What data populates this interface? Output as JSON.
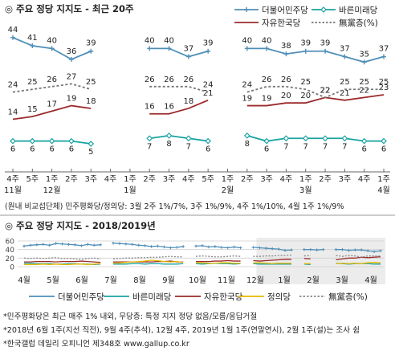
{
  "chart_data": [
    {
      "type": "line",
      "title": "◎ 주요 정당 지지도 - 최근 20주",
      "x_top": [
        "4주",
        "5주",
        "1주",
        "2주",
        "3주",
        "4주",
        "1주",
        "2주",
        "3주",
        "4주",
        "5주",
        "1주",
        "2주",
        "3주",
        "4주",
        "1주",
        "2주",
        "3주",
        "4주",
        "1주"
      ],
      "x_bottom": [
        "11월",
        "",
        "12월",
        "",
        "",
        "",
        "1월",
        "",
        "",
        "",
        "",
        "2월",
        "",
        "",
        "",
        "3월",
        "",
        "",
        "",
        "4월"
      ],
      "ylim": [
        0,
        46
      ],
      "legend": [
        "더불어민주당",
        "바른미래당",
        "자유한국당",
        "無黨층(%)"
      ],
      "series": [
        {
          "name": "더불어민주당",
          "color": "#4f8fb8",
          "marker": "plus",
          "values": [
            44,
            41,
            40,
            36,
            39,
            null,
            null,
            40,
            40,
            37,
            39,
            null,
            40,
            40,
            38,
            39,
            39,
            37,
            35,
            37
          ]
        },
        {
          "name": "자유한국당",
          "color": "#9c2a2a",
          "marker": "none",
          "values": [
            14,
            15,
            17,
            19,
            18,
            null,
            null,
            16,
            16,
            18,
            21,
            null,
            19,
            19,
            20,
            20,
            22,
            21,
            22,
            23
          ]
        },
        {
          "name": "無黨층(%)",
          "color": "#777777",
          "marker": "none",
          "dash": true,
          "values": [
            24,
            25,
            26,
            27,
            25,
            null,
            null,
            26,
            26,
            26,
            24,
            null,
            24,
            26,
            26,
            25,
            22,
            25,
            25,
            25
          ]
        },
        {
          "name": "바른미래당",
          "color": "#1aa3a3",
          "marker": "diamond",
          "values": [
            6,
            6,
            6,
            6,
            5,
            null,
            null,
            7,
            8,
            7,
            6,
            null,
            8,
            6,
            7,
            7,
            7,
            7,
            6,
            6
          ]
        }
      ],
      "note": "(원내 비교섭단체) 민주평화당/정의당: 3월 2주 1%/7%, 3주 1%/9%, 4주 1%/10%, 4월 1주 1%/9%"
    },
    {
      "type": "line",
      "title": "◎ 주요 정당 지지도 - 2018/2019년",
      "ylim": [
        0,
        60
      ],
      "yticks": [
        0,
        20,
        40,
        60
      ],
      "months": [
        "4월",
        "5월",
        "6월",
        "7월",
        "8월",
        "9월",
        "10월",
        "11월",
        "12월",
        "1월",
        "2월",
        "3월",
        "4월"
      ],
      "legend": [
        "더불어민주당",
        "바른미래당",
        "자유한국당",
        "정의당",
        "無黨층(%)"
      ],
      "series": [
        {
          "name": "더불어민주당",
          "color": "#4f8fb8",
          "values": [
            48,
            50,
            51,
            52,
            50,
            54,
            53,
            52,
            51,
            49,
            52,
            50,
            51,
            null,
            55,
            54,
            53,
            52,
            50,
            49,
            47,
            48,
            46,
            44,
            45,
            47,
            null,
            48,
            49,
            46,
            47,
            45,
            44,
            46,
            44,
            null,
            45,
            44,
            43,
            42,
            41,
            38,
            39,
            null,
            40,
            40,
            39,
            40,
            null,
            40,
            40,
            38,
            39,
            39,
            37,
            35,
            37
          ]
        },
        {
          "name": "자유한국당",
          "color": "#9c2a2a",
          "values": [
            11,
            11,
            12,
            12,
            12,
            11,
            12,
            12,
            12,
            13,
            12,
            11,
            10,
            null,
            11,
            11,
            11,
            11,
            11,
            11,
            11,
            12,
            12,
            13,
            11,
            11,
            null,
            12,
            12,
            12,
            13,
            13,
            14,
            13,
            13,
            null,
            14,
            13,
            14,
            15,
            16,
            17,
            17,
            null,
            19,
            18,
            null,
            16,
            null,
            16,
            18,
            20,
            20,
            22,
            21,
            22,
            23
          ]
        },
        {
          "name": "無黨층(%)",
          "color": "#888888",
          "dash": true,
          "values": [
            20,
            19,
            20,
            19,
            20,
            21,
            19,
            19,
            18,
            17,
            19,
            20,
            18,
            null,
            18,
            19,
            20,
            20,
            21,
            21,
            22,
            22,
            23,
            24,
            23,
            23,
            null,
            24,
            25,
            24,
            23,
            23,
            24,
            25,
            24,
            null,
            24,
            24,
            25,
            25,
            26,
            26,
            27,
            null,
            25,
            26,
            null,
            26,
            null,
            26,
            24,
            26,
            25,
            22,
            25,
            25,
            25
          ]
        },
        {
          "name": "바른미래당",
          "color": "#1aa3a3",
          "values": [
            8,
            8,
            7,
            7,
            7,
            6,
            6,
            7,
            7,
            6,
            6,
            5,
            6,
            null,
            6,
            6,
            6,
            7,
            7,
            6,
            7,
            7,
            6,
            6,
            6,
            7,
            null,
            7,
            6,
            7,
            8,
            7,
            7,
            6,
            7,
            null,
            7,
            6,
            6,
            6,
            6,
            6,
            6,
            null,
            6,
            5,
            null,
            7,
            null,
            8,
            7,
            6,
            7,
            7,
            7,
            6,
            6
          ]
        },
        {
          "name": "정의당",
          "color": "#e8b800",
          "values": [
            5,
            5,
            5,
            6,
            5,
            6,
            5,
            5,
            6,
            6,
            5,
            6,
            7,
            null,
            8,
            9,
            10,
            11,
            12,
            13,
            15,
            14,
            12,
            11,
            12,
            10,
            null,
            9,
            9,
            8,
            8,
            9,
            9,
            8,
            8,
            null,
            9,
            9,
            8,
            7,
            8,
            8,
            8,
            null,
            7,
            7,
            null,
            6,
            null,
            7,
            8,
            7,
            8,
            7,
            9,
            10,
            9
          ]
        }
      ],
      "notes": [
        "*민주평화당은 최근 매주 1% 내외, 무당층: 특정 지지 정당 없음/모름/응답거절",
        "*2018년 6월 1주(지선 직전), 9월 4주(추석), 12월 4주, 2019년 1월 1주(연말연시), 2월 1주(설)는 조사 쉼",
        "*한국갤럽 데일리 오피니언 제348호 www.gallup.co.kr"
      ]
    }
  ]
}
